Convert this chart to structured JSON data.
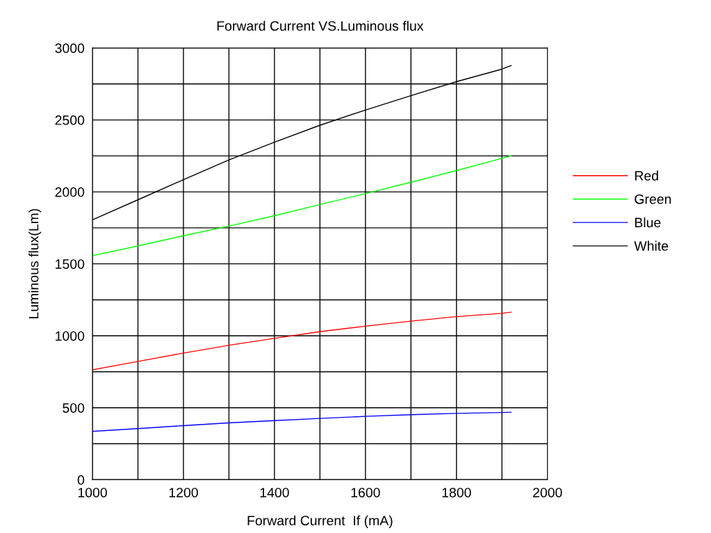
{
  "chart_data": {
    "type": "line",
    "title": "Forward Current VS.Luminous flux",
    "xlabel": "Forward Current  If (mA)",
    "ylabel": "Luminous flux(Lm)",
    "x": [
      1000,
      1100,
      1200,
      1300,
      1400,
      1500,
      1600,
      1700,
      1800,
      1900,
      1920
    ],
    "series": [
      {
        "name": "Red",
        "color": "#ff0000",
        "values": [
          764,
          822,
          880,
          934,
          982,
          1029,
          1067,
          1102,
          1133,
          1156,
          1164
        ]
      },
      {
        "name": "Green",
        "color": "#00ff00",
        "values": [
          1557,
          1624,
          1695,
          1762,
          1834,
          1912,
          1988,
          2067,
          2148,
          2233,
          2250
        ]
      },
      {
        "name": "Blue",
        "color": "#0000ff",
        "values": [
          336,
          355,
          376,
          395,
          411,
          426,
          440,
          452,
          461,
          467,
          469
        ]
      },
      {
        "name": "White",
        "color": "#000000",
        "values": [
          1806,
          1945,
          2085,
          2222,
          2345,
          2463,
          2569,
          2669,
          2766,
          2853,
          2878
        ]
      }
    ],
    "xlim": [
      1000,
      2000
    ],
    "xticks": [
      1000,
      {
        "value": 1100,
        "label": null
      },
      1200,
      {
        "value": 1300,
        "label": null
      },
      1400,
      {
        "value": 1500,
        "label": null
      },
      1600,
      {
        "value": 1700,
        "label": null
      },
      1800,
      {
        "value": 1900,
        "label": null
      },
      2000
    ],
    "ylim": [
      0,
      3000
    ],
    "yticks": [
      0,
      {
        "value": 250,
        "label": null
      },
      500,
      {
        "value": 750,
        "label": null
      },
      1000,
      {
        "value": 1250,
        "label": null
      },
      1500,
      {
        "value": 1750,
        "label": null
      },
      2000,
      {
        "value": 2250,
        "label": null
      },
      2500,
      {
        "value": 2750,
        "label": null
      },
      3000
    ],
    "grid": true,
    "legend": "right",
    "marker": "none",
    "line_style": "solid"
  }
}
